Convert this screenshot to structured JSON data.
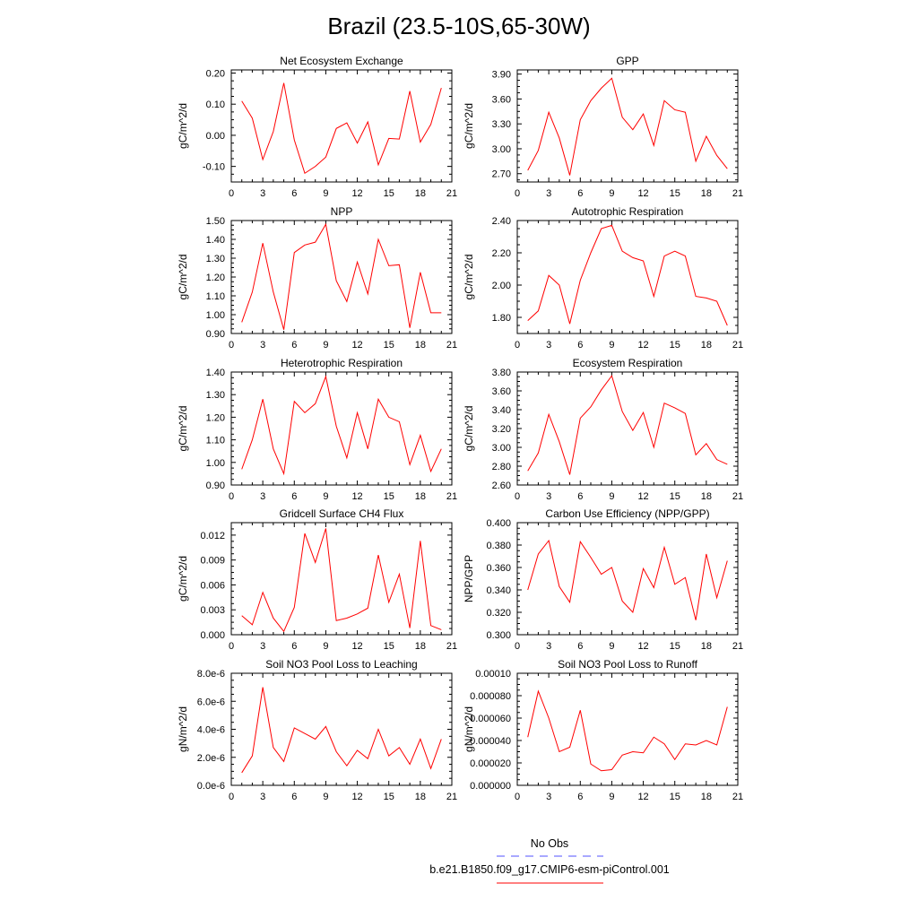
{
  "title": "Brazil (23.5-10S,65-30W)",
  "legend": [
    {
      "label": "No Obs",
      "color": "#5050ff",
      "style": "dashed"
    },
    {
      "label": "b.e21.B1850.f09_g17.CMIP6-esm-piControl.001",
      "color": "#ff0000",
      "style": "solid"
    }
  ],
  "chart_data": [
    {
      "type": "line",
      "title": "Net Ecosystem Exchange",
      "xlabel": "",
      "ylabel": "gC/m^2/d",
      "xlim": [
        0,
        21
      ],
      "ylim": [
        -0.15,
        0.21
      ],
      "xticks": [
        0,
        3,
        6,
        9,
        12,
        15,
        18,
        21
      ],
      "xtick_labels": [
        "0",
        "3",
        "6",
        "9",
        "12",
        "15",
        "18",
        "21"
      ],
      "yticks": [
        -0.1,
        0.0,
        0.1,
        0.2
      ],
      "ytick_labels": [
        "-0.10",
        "0.00",
        "0.10",
        "0.20"
      ],
      "x": [
        1,
        2,
        3,
        4,
        5,
        6,
        7,
        8,
        9,
        10,
        11,
        12,
        13,
        14,
        15,
        16,
        17,
        18,
        19,
        20
      ],
      "series": [
        {
          "name": "b.e21.B1850.f09_g17.CMIP6-esm-piControl.001",
          "color": "#ff0000",
          "values": [
            0.11,
            0.055,
            -0.078,
            0.012,
            0.168,
            -0.015,
            -0.122,
            -0.1,
            -0.07,
            0.022,
            0.04,
            -0.025,
            0.043,
            -0.095,
            -0.01,
            -0.012,
            0.142,
            -0.022,
            0.035,
            0.152
          ]
        }
      ]
    },
    {
      "type": "line",
      "title": "GPP",
      "xlabel": "",
      "ylabel": "gC/m^2/d",
      "xlim": [
        0,
        21
      ],
      "ylim": [
        2.6,
        3.95
      ],
      "xticks": [
        0,
        3,
        6,
        9,
        12,
        15,
        18,
        21
      ],
      "xtick_labels": [
        "0",
        "3",
        "6",
        "9",
        "12",
        "15",
        "18",
        "21"
      ],
      "yticks": [
        2.7,
        3.0,
        3.3,
        3.6,
        3.9
      ],
      "ytick_labels": [
        "2.70",
        "3.00",
        "3.30",
        "3.60",
        "3.90"
      ],
      "x": [
        1,
        2,
        3,
        4,
        5,
        6,
        7,
        8,
        9,
        10,
        11,
        12,
        13,
        14,
        15,
        16,
        17,
        18,
        19,
        20
      ],
      "series": [
        {
          "name": "b.e21.B1850.f09_g17.CMIP6-esm-piControl.001",
          "color": "#ff0000",
          "values": [
            2.74,
            2.98,
            3.44,
            3.13,
            2.68,
            3.35,
            3.58,
            3.73,
            3.85,
            3.38,
            3.23,
            3.42,
            3.04,
            3.58,
            3.47,
            3.44,
            2.85,
            3.15,
            2.92,
            2.76
          ]
        }
      ]
    },
    {
      "type": "line",
      "title": "NPP",
      "xlabel": "",
      "ylabel": "gC/m^2/d",
      "xlim": [
        0,
        21
      ],
      "ylim": [
        0.9,
        1.5
      ],
      "xticks": [
        0,
        3,
        6,
        9,
        12,
        15,
        18,
        21
      ],
      "xtick_labels": [
        "0",
        "3",
        "6",
        "9",
        "12",
        "15",
        "18",
        "21"
      ],
      "yticks": [
        0.9,
        1.0,
        1.1,
        1.2,
        1.3,
        1.4,
        1.5
      ],
      "ytick_labels": [
        "0.90",
        "1.00",
        "1.10",
        "1.20",
        "1.30",
        "1.40",
        "1.50"
      ],
      "x": [
        1,
        2,
        3,
        4,
        5,
        6,
        7,
        8,
        9,
        10,
        11,
        12,
        13,
        14,
        15,
        16,
        17,
        18,
        19,
        20
      ],
      "series": [
        {
          "name": "b.e21.B1850.f09_g17.CMIP6-esm-piControl.001",
          "color": "#ff0000",
          "values": [
            0.96,
            1.12,
            1.38,
            1.12,
            0.92,
            1.33,
            1.37,
            1.385,
            1.48,
            1.18,
            1.07,
            1.28,
            1.11,
            1.4,
            1.26,
            1.265,
            0.93,
            1.225,
            1.01,
            1.01
          ]
        }
      ]
    },
    {
      "type": "line",
      "title": "Autotrophic Respiration",
      "xlabel": "",
      "ylabel": "gC/m^2/d",
      "xlim": [
        0,
        21
      ],
      "ylim": [
        1.7,
        2.4
      ],
      "xticks": [
        0,
        3,
        6,
        9,
        12,
        15,
        18,
        21
      ],
      "xtick_labels": [
        "0",
        "3",
        "6",
        "9",
        "12",
        "15",
        "18",
        "21"
      ],
      "yticks": [
        1.8,
        2.0,
        2.2,
        2.4
      ],
      "ytick_labels": [
        "1.80",
        "2.00",
        "2.20",
        "2.40"
      ],
      "x": [
        1,
        2,
        3,
        4,
        5,
        6,
        7,
        8,
        9,
        10,
        11,
        12,
        13,
        14,
        15,
        16,
        17,
        18,
        19,
        20
      ],
      "series": [
        {
          "name": "b.e21.B1850.f09_g17.CMIP6-esm-piControl.001",
          "color": "#ff0000",
          "values": [
            1.78,
            1.84,
            2.06,
            2.0,
            1.76,
            2.03,
            2.2,
            2.35,
            2.37,
            2.21,
            2.17,
            2.15,
            1.93,
            2.18,
            2.21,
            2.18,
            1.93,
            1.92,
            1.9,
            1.75
          ]
        }
      ]
    },
    {
      "type": "line",
      "title": "Heterotrophic Respiration",
      "xlabel": "",
      "ylabel": "gC/m^2/d",
      "xlim": [
        0,
        21
      ],
      "ylim": [
        0.9,
        1.4
      ],
      "xticks": [
        0,
        3,
        6,
        9,
        12,
        15,
        18,
        21
      ],
      "xtick_labels": [
        "0",
        "3",
        "6",
        "9",
        "12",
        "15",
        "18",
        "21"
      ],
      "yticks": [
        0.9,
        1.0,
        1.1,
        1.2,
        1.3,
        1.4
      ],
      "ytick_labels": [
        "0.90",
        "1.00",
        "1.10",
        "1.20",
        "1.30",
        "1.40"
      ],
      "x": [
        1,
        2,
        3,
        4,
        5,
        6,
        7,
        8,
        9,
        10,
        11,
        12,
        13,
        14,
        15,
        16,
        17,
        18,
        19,
        20
      ],
      "series": [
        {
          "name": "b.e21.B1850.f09_g17.CMIP6-esm-piControl.001",
          "color": "#ff0000",
          "values": [
            0.97,
            1.1,
            1.28,
            1.06,
            0.95,
            1.27,
            1.22,
            1.26,
            1.38,
            1.16,
            1.02,
            1.22,
            1.06,
            1.28,
            1.2,
            1.18,
            0.99,
            1.12,
            0.96,
            1.06
          ]
        }
      ]
    },
    {
      "type": "line",
      "title": "Ecosystem Respiration",
      "xlabel": "",
      "ylabel": "gC/m^2/d",
      "xlim": [
        0,
        21
      ],
      "ylim": [
        2.6,
        3.8
      ],
      "xticks": [
        0,
        3,
        6,
        9,
        12,
        15,
        18,
        21
      ],
      "xtick_labels": [
        "0",
        "3",
        "6",
        "9",
        "12",
        "15",
        "18",
        "21"
      ],
      "yticks": [
        2.6,
        2.8,
        3.0,
        3.2,
        3.4,
        3.6,
        3.8
      ],
      "ytick_labels": [
        "2.60",
        "2.80",
        "3.00",
        "3.20",
        "3.40",
        "3.60",
        "3.80"
      ],
      "x": [
        1,
        2,
        3,
        4,
        5,
        6,
        7,
        8,
        9,
        10,
        11,
        12,
        13,
        14,
        15,
        16,
        17,
        18,
        19,
        20
      ],
      "series": [
        {
          "name": "b.e21.B1850.f09_g17.CMIP6-esm-piControl.001",
          "color": "#ff0000",
          "values": [
            2.75,
            2.94,
            3.35,
            3.06,
            2.71,
            3.31,
            3.43,
            3.61,
            3.76,
            3.38,
            3.18,
            3.37,
            3.0,
            3.47,
            3.42,
            3.36,
            2.92,
            3.04,
            2.87,
            2.82
          ]
        }
      ]
    },
    {
      "type": "line",
      "title": "Gridcell Surface CH4 Flux",
      "xlabel": "",
      "ylabel": "gC/m^2/d",
      "xlim": [
        0,
        21
      ],
      "ylim": [
        0.0,
        0.0135
      ],
      "xticks": [
        0,
        3,
        6,
        9,
        12,
        15,
        18,
        21
      ],
      "xtick_labels": [
        "0",
        "3",
        "6",
        "9",
        "12",
        "15",
        "18",
        "21"
      ],
      "yticks": [
        0.0,
        0.003,
        0.006,
        0.009,
        0.012
      ],
      "ytick_labels": [
        "0.000",
        "0.003",
        "0.006",
        "0.009",
        "0.012"
      ],
      "x": [
        1,
        2,
        3,
        4,
        5,
        6,
        7,
        8,
        9,
        10,
        11,
        12,
        13,
        14,
        15,
        16,
        17,
        18,
        19,
        20
      ],
      "series": [
        {
          "name": "b.e21.B1850.f09_g17.CMIP6-esm-piControl.001",
          "color": "#ff0000",
          "values": [
            0.0023,
            0.0012,
            0.0051,
            0.002,
            0.0004,
            0.0033,
            0.0122,
            0.0087,
            0.0128,
            0.0017,
            0.002,
            0.0025,
            0.0032,
            0.0096,
            0.0039,
            0.0073,
            0.0008,
            0.0113,
            0.0011,
            0.0006
          ]
        }
      ]
    },
    {
      "type": "line",
      "title": "Carbon Use Efficiency (NPP/GPP)",
      "xlabel": "",
      "ylabel": "NPP/GPP",
      "xlim": [
        0,
        21
      ],
      "ylim": [
        0.3,
        0.4
      ],
      "xticks": [
        0,
        3,
        6,
        9,
        12,
        15,
        18,
        21
      ],
      "xtick_labels": [
        "0",
        "3",
        "6",
        "9",
        "12",
        "15",
        "18",
        "21"
      ],
      "yticks": [
        0.3,
        0.32,
        0.34,
        0.36,
        0.38,
        0.4
      ],
      "ytick_labels": [
        "0.300",
        "0.320",
        "0.340",
        "0.360",
        "0.380",
        "0.400"
      ],
      "x": [
        1,
        2,
        3,
        4,
        5,
        6,
        7,
        8,
        9,
        10,
        11,
        12,
        13,
        14,
        15,
        16,
        17,
        18,
        19,
        20
      ],
      "series": [
        {
          "name": "b.e21.B1850.f09_g17.CMIP6-esm-piControl.001",
          "color": "#ff0000",
          "values": [
            0.34,
            0.372,
            0.384,
            0.343,
            0.329,
            0.383,
            0.369,
            0.354,
            0.36,
            0.33,
            0.32,
            0.359,
            0.342,
            0.378,
            0.345,
            0.351,
            0.313,
            0.372,
            0.333,
            0.366
          ]
        }
      ]
    },
    {
      "type": "line",
      "title": "Soil NO3 Pool Loss to Leaching",
      "xlabel": "",
      "ylabel": "gN/m^2/d",
      "xlim": [
        0,
        21
      ],
      "ylim": [
        0.0,
        8e-06
      ],
      "xticks": [
        0,
        3,
        6,
        9,
        12,
        15,
        18,
        21
      ],
      "xtick_labels": [
        "0",
        "3",
        "6",
        "9",
        "12",
        "15",
        "18",
        "21"
      ],
      "yticks": [
        0.0,
        2e-06,
        4e-06,
        6e-06,
        8e-06
      ],
      "ytick_labels": [
        "0.0e-6",
        "2.0e-6",
        "4.0e-6",
        "6.0e-6",
        "8.0e-6"
      ],
      "x": [
        1,
        2,
        3,
        4,
        5,
        6,
        7,
        8,
        9,
        10,
        11,
        12,
        13,
        14,
        15,
        16,
        17,
        18,
        19,
        20
      ],
      "series": [
        {
          "name": "b.e21.B1850.f09_g17.CMIP6-esm-piControl.001",
          "color": "#ff0000",
          "values": [
            9e-07,
            2.1e-06,
            7e-06,
            2.7e-06,
            1.7e-06,
            4.1e-06,
            3.7e-06,
            3.3e-06,
            4.2e-06,
            2.4e-06,
            1.4e-06,
            2.5e-06,
            1.9e-06,
            4e-06,
            2.1e-06,
            2.7e-06,
            1.5e-06,
            3.3e-06,
            1.2e-06,
            3.3e-06
          ]
        }
      ]
    },
    {
      "type": "line",
      "title": "Soil NO3 Pool Loss to Runoff",
      "xlabel": "",
      "ylabel": "gN/m^2/d",
      "xlim": [
        0,
        21
      ],
      "ylim": [
        0.0,
        0.0001
      ],
      "xticks": [
        0,
        3,
        6,
        9,
        12,
        15,
        18,
        21
      ],
      "xtick_labels": [
        "0",
        "3",
        "6",
        "9",
        "12",
        "15",
        "18",
        "21"
      ],
      "yticks": [
        0.0,
        2e-05,
        4e-05,
        6e-05,
        8e-05,
        0.0001
      ],
      "ytick_labels": [
        "0.000000",
        "0.000020",
        "0.000040",
        "0.000060",
        "0.000080",
        "0.00010"
      ],
      "x": [
        1,
        2,
        3,
        4,
        5,
        6,
        7,
        8,
        9,
        10,
        11,
        12,
        13,
        14,
        15,
        16,
        17,
        18,
        19,
        20
      ],
      "series": [
        {
          "name": "b.e21.B1850.f09_g17.CMIP6-esm-piControl.001",
          "color": "#ff0000",
          "values": [
            4.3e-05,
            8.4e-05,
            6e-05,
            3e-05,
            3.4e-05,
            6.7e-05,
            1.9e-05,
            1.3e-05,
            1.4e-05,
            2.7e-05,
            3e-05,
            2.9e-05,
            4.3e-05,
            3.7e-05,
            2.3e-05,
            3.7e-05,
            3.6e-05,
            4e-05,
            3.6e-05,
            7e-05
          ]
        }
      ]
    }
  ]
}
